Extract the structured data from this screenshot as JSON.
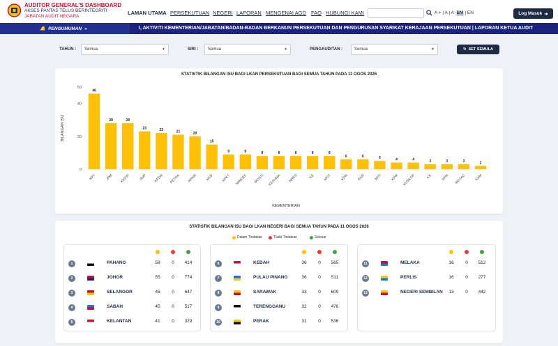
{
  "brand": {
    "title": "AUDITOR GENERAL'S DASHBOARD",
    "subtitle": "AKSES PANTAS TELUS BERINTEGRITI",
    "org": "JABATAN AUDIT NEGARA"
  },
  "nav": [
    "LAMAN UTAMA",
    "PERSEKUTUAN",
    "NEGERI",
    "LAPORAN",
    "MENGENAI AGD",
    "FAQ",
    "HUBUNGI KAMI"
  ],
  "search": {
    "placeholder": ""
  },
  "font_size": {
    "small": "A -",
    "normal": "A",
    "large": "A +"
  },
  "lang": {
    "bm": "BM",
    "en": "EN"
  },
  "login": "Log Masuk",
  "announcement": {
    "label": "PENGUMUMAN",
    "text": "I, AKTIVITI KEMENTERIAN/JABATAN/BADAN-BADAN BERKANUN PERSEKUTUAN DAN PENGURUSAN SYARIKAT KERAJAAN PERSEKUTUAN | LAPORAN KETUA AUDIT"
  },
  "filters": {
    "tahun": {
      "label": "TAHUN :",
      "value": "Semua"
    },
    "siri": {
      "label": "SIRI :",
      "value": "Semua"
    },
    "pengauditan": {
      "label": "PENGAUDITAN :",
      "value": "Semua"
    },
    "reset": "SET SEMULA"
  },
  "chart_data": {
    "type": "bar",
    "title": "STATISTIK BILANGAN ISU BAGI LKAN PERSEKUTUAN BAGI SEMUA TAHUN PADA 11 OGOS 2026",
    "xlabel": "KEMENTERIAN",
    "ylabel": "BILANGAN ISU",
    "ylim": [
      0,
      50
    ],
    "yticks": [
      0,
      20,
      40,
      50
    ],
    "color": "#ffc107",
    "categories": [
      "KPT",
      "JPM",
      "KKDW",
      "JWP",
      "KPDN",
      "PETRA",
      "KPKM",
      "MOF",
      "KPKT",
      "MINDEF",
      "MOSTI",
      "KESUMA",
      "NRES",
      "KE",
      "MOT",
      "KDN",
      "KKR",
      "MITI",
      "KPM",
      "KUSKOP",
      "KK",
      "KPN",
      "MOTAC",
      "KKM"
    ],
    "values": [
      46,
      28,
      28,
      23,
      22,
      21,
      20,
      15,
      9,
      9,
      8,
      8,
      8,
      8,
      8,
      6,
      6,
      5,
      4,
      4,
      3,
      3,
      3,
      2
    ]
  },
  "states_section": {
    "title": "STATISTIK BILANGAN ISU BAGI LKAN NEGERI BAGI SEMUA TAHUN PADA 11 OGOS 2026",
    "legend": [
      {
        "label": "Dalam Tindakan",
        "color": "#ffc107"
      },
      {
        "label": "Tiada Tindakan",
        "color": "#e53935"
      },
      {
        "label": "Selesai",
        "color": "#43a047"
      }
    ],
    "panels": [
      [
        {
          "no": "1",
          "name": "PAHANG",
          "a": "58",
          "b": "0",
          "c": "414"
        },
        {
          "no": "2",
          "name": "JOHOR",
          "a": "55",
          "b": "0",
          "c": "774"
        },
        {
          "no": "3",
          "name": "SELANGOR",
          "a": "45",
          "b": "0",
          "c": "647"
        },
        {
          "no": "4",
          "name": "SABAH",
          "a": "45",
          "b": "0",
          "c": "517"
        },
        {
          "no": "5",
          "name": "KELANTAN",
          "a": "41",
          "b": "0",
          "c": "329"
        }
      ],
      [
        {
          "no": "6",
          "name": "KEDAH",
          "a": "36",
          "b": "0",
          "c": "565"
        },
        {
          "no": "7",
          "name": "PULAU PINANG",
          "a": "36",
          "b": "0",
          "c": "511"
        },
        {
          "no": "8",
          "name": "SARAWAK",
          "a": "33",
          "b": "0",
          "c": "609"
        },
        {
          "no": "9",
          "name": "TERENGGANU",
          "a": "32",
          "b": "0",
          "c": "476"
        },
        {
          "no": "10",
          "name": "PERAK",
          "a": "31",
          "b": "0",
          "c": "536"
        }
      ],
      [
        {
          "no": "11",
          "name": "MELAKA",
          "a": "16",
          "b": "0",
          "c": "512"
        },
        {
          "no": "12",
          "name": "PERLIS",
          "a": "16",
          "b": "0",
          "c": "277"
        },
        {
          "no": "13",
          "name": "NEGERI SEMBILAN",
          "a": "13",
          "b": "0",
          "c": "442"
        }
      ]
    ]
  }
}
